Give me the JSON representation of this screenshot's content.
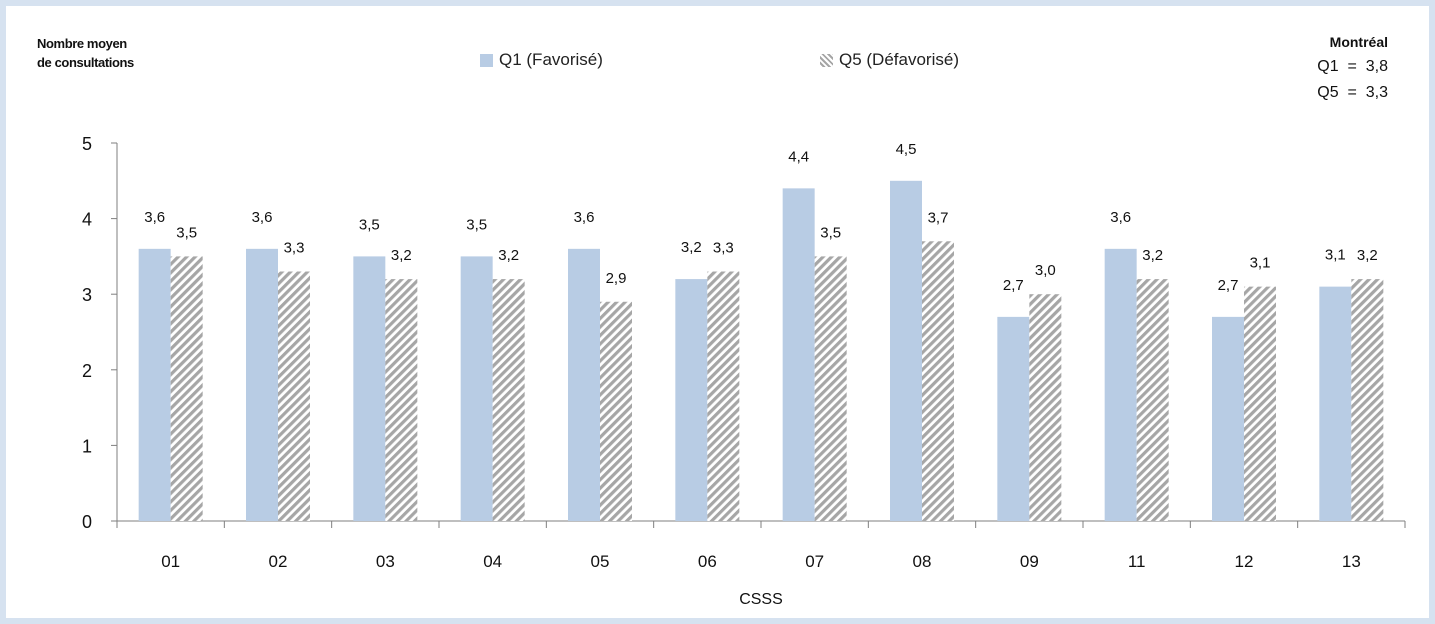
{
  "chart_data": {
    "type": "bar",
    "ylabel_lines": [
      "Nombre moyen",
      "de consultations"
    ],
    "xlabel": "CSSS",
    "categories": [
      "01",
      "02",
      "03",
      "04",
      "05",
      "06",
      "07",
      "08",
      "09",
      "11",
      "12",
      "13"
    ],
    "series": [
      {
        "name": "Q1 (Favorisé)",
        "color": "#b8cce4",
        "pattern": "solid",
        "values": [
          3.6,
          3.6,
          3.5,
          3.5,
          3.6,
          3.2,
          4.4,
          4.5,
          2.7,
          3.6,
          2.7,
          3.1
        ],
        "labels": [
          "3,6",
          "3,6",
          "3,5",
          "3,5",
          "3,6",
          "3,2",
          "4,4",
          "4,5",
          "2,7",
          "3,6",
          "2,7",
          "3,1"
        ]
      },
      {
        "name": "Q5 (Défavorisé)",
        "color": "#a6a6a6",
        "pattern": "diagonal-hatch",
        "values": [
          3.5,
          3.3,
          3.2,
          3.2,
          2.9,
          3.3,
          3.5,
          3.7,
          3.0,
          3.2,
          3.1,
          3.2
        ],
        "labels": [
          "3,5",
          "3,3",
          "3,2",
          "3,2",
          "2,9",
          "3,3",
          "3,5",
          "3,7",
          "3,0",
          "3,2",
          "3,1",
          "3,2"
        ]
      }
    ],
    "ylim": [
      0,
      5
    ],
    "yticks": [
      0,
      1,
      2,
      3,
      4,
      5
    ],
    "ytick_labels": [
      "0",
      "1",
      "2",
      "3",
      "4",
      "5"
    ],
    "grid": false,
    "legend_position": "top-center"
  },
  "summary": {
    "title": "Montréal",
    "line1": "Q1  =  3,8",
    "line2": "Q5  =  3,3"
  }
}
